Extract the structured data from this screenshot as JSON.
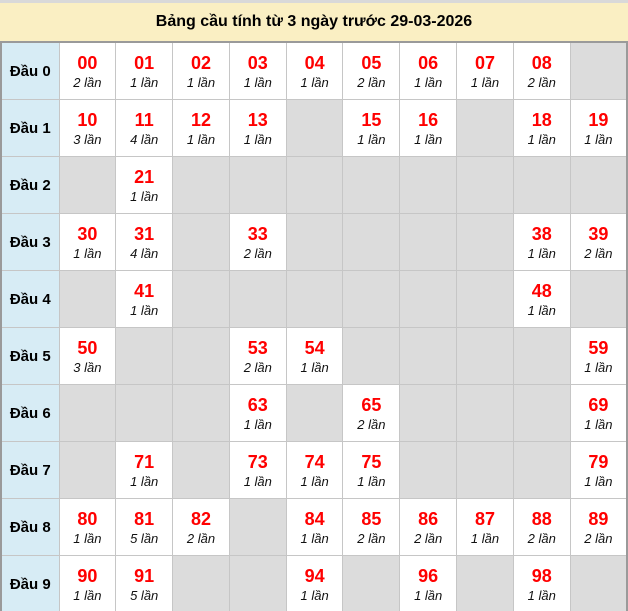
{
  "title": "Bảng cầu tính từ 3 ngày trước 29-03-2026",
  "colors": {
    "title_background": "#faefc3",
    "row_header_background": "#d7ecf5",
    "empty_cell_background": "#dcdcdc",
    "filled_cell_background": "#ffffff",
    "number_color": "#ff0000",
    "table_border": "#9a9a9a"
  },
  "chart_data": {
    "type": "table",
    "title": "Bảng cầu tính từ 3 ngày trước 29-03-2026",
    "row_header_prefix": "Đầu",
    "count_unit": "lần",
    "rows": [
      {
        "label": "Đầu 0",
        "cells": [
          {
            "number": "00",
            "count": "2 lần"
          },
          {
            "number": "01",
            "count": "1 lần"
          },
          {
            "number": "02",
            "count": "1 lần"
          },
          {
            "number": "03",
            "count": "1 lần"
          },
          {
            "number": "04",
            "count": "1 lần"
          },
          {
            "number": "05",
            "count": "2 lần"
          },
          {
            "number": "06",
            "count": "1 lần"
          },
          {
            "number": "07",
            "count": "1 lần"
          },
          {
            "number": "08",
            "count": "2 lần"
          },
          null
        ]
      },
      {
        "label": "Đầu 1",
        "cells": [
          {
            "number": "10",
            "count": "3 lần"
          },
          {
            "number": "11",
            "count": "4 lần"
          },
          {
            "number": "12",
            "count": "1 lần"
          },
          {
            "number": "13",
            "count": "1 lần"
          },
          null,
          {
            "number": "15",
            "count": "1 lần"
          },
          {
            "number": "16",
            "count": "1 lần"
          },
          null,
          {
            "number": "18",
            "count": "1 lần"
          },
          {
            "number": "19",
            "count": "1 lần"
          }
        ]
      },
      {
        "label": "Đầu 2",
        "cells": [
          null,
          {
            "number": "21",
            "count": "1 lần"
          },
          null,
          null,
          null,
          null,
          null,
          null,
          null,
          null
        ]
      },
      {
        "label": "Đầu 3",
        "cells": [
          {
            "number": "30",
            "count": "1 lần"
          },
          {
            "number": "31",
            "count": "4 lần"
          },
          null,
          {
            "number": "33",
            "count": "2 lần"
          },
          null,
          null,
          null,
          null,
          {
            "number": "38",
            "count": "1 lần"
          },
          {
            "number": "39",
            "count": "2 lần"
          }
        ]
      },
      {
        "label": "Đầu 4",
        "cells": [
          null,
          {
            "number": "41",
            "count": "1 lần"
          },
          null,
          null,
          null,
          null,
          null,
          null,
          {
            "number": "48",
            "count": "1 lần"
          },
          null
        ]
      },
      {
        "label": "Đầu 5",
        "cells": [
          {
            "number": "50",
            "count": "3 lần"
          },
          null,
          null,
          {
            "number": "53",
            "count": "2 lần"
          },
          {
            "number": "54",
            "count": "1 lần"
          },
          null,
          null,
          null,
          null,
          {
            "number": "59",
            "count": "1 lần"
          }
        ]
      },
      {
        "label": "Đầu 6",
        "cells": [
          null,
          null,
          null,
          {
            "number": "63",
            "count": "1 lần"
          },
          null,
          {
            "number": "65",
            "count": "2 lần"
          },
          null,
          null,
          null,
          {
            "number": "69",
            "count": "1 lần"
          }
        ]
      },
      {
        "label": "Đầu 7",
        "cells": [
          null,
          {
            "number": "71",
            "count": "1 lần"
          },
          null,
          {
            "number": "73",
            "count": "1 lần"
          },
          {
            "number": "74",
            "count": "1 lần"
          },
          {
            "number": "75",
            "count": "1 lần"
          },
          null,
          null,
          null,
          {
            "number": "79",
            "count": "1 lần"
          }
        ]
      },
      {
        "label": "Đầu 8",
        "cells": [
          {
            "number": "80",
            "count": "1 lần"
          },
          {
            "number": "81",
            "count": "5 lần"
          },
          {
            "number": "82",
            "count": "2 lần"
          },
          null,
          {
            "number": "84",
            "count": "1 lần"
          },
          {
            "number": "85",
            "count": "2 lần"
          },
          {
            "number": "86",
            "count": "2 lần"
          },
          {
            "number": "87",
            "count": "1 lần"
          },
          {
            "number": "88",
            "count": "2 lần"
          },
          {
            "number": "89",
            "count": "2 lần"
          }
        ]
      },
      {
        "label": "Đầu 9",
        "cells": [
          {
            "number": "90",
            "count": "1 lần"
          },
          {
            "number": "91",
            "count": "5 lần"
          },
          null,
          null,
          {
            "number": "94",
            "count": "1 lần"
          },
          null,
          {
            "number": "96",
            "count": "1 lần"
          },
          null,
          {
            "number": "98",
            "count": "1 lần"
          },
          null
        ]
      }
    ]
  }
}
